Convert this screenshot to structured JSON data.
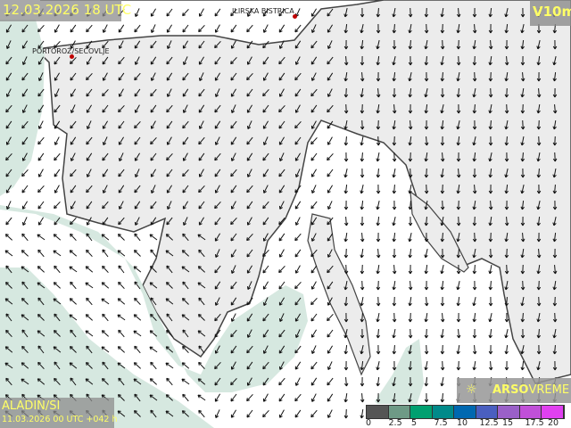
{
  "header": {
    "valid_time": "12.03.2026 18 UTC",
    "parameter": "V10m"
  },
  "model": {
    "name": "ALADIN/SI",
    "run": "11.03.2026 00 UTC +042 h"
  },
  "branding": {
    "icon": "lightbulb-icon",
    "brand_bold": "ARSO",
    "brand_rest": "VREME"
  },
  "cities": [
    {
      "name": "ILIRSKA BISTRICA"
    },
    {
      "name": "PORTOROŽ/SEČOVLJE"
    }
  ],
  "legend": {
    "unit_values": [
      "0",
      "2.5",
      "5",
      "7.5",
      "10",
      "12.5",
      "15",
      "17.5",
      "20"
    ],
    "colors": [
      "#555555",
      "#6e9a86",
      "#00a070",
      "#008a8a",
      "#0068b0",
      "#4a5fc0",
      "#9a60c8",
      "#c050d8",
      "#e040f0"
    ]
  },
  "colors": {
    "land": "#ececec",
    "sea": "#ffffff",
    "light_wind": "#d6e8e0",
    "coast": "#444444",
    "label": "#ffff66"
  }
}
